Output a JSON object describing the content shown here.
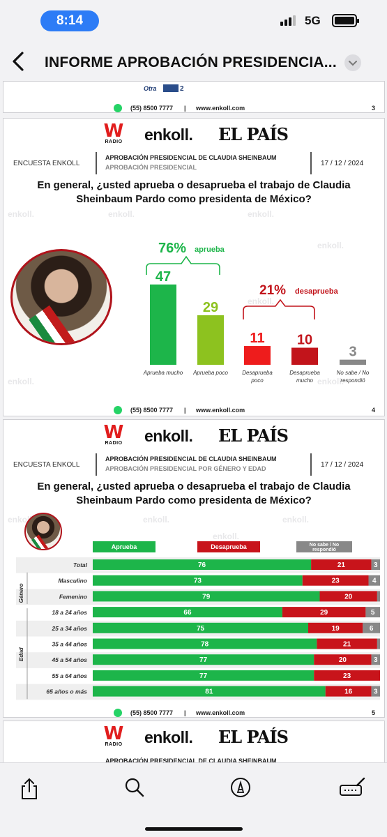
{
  "status_bar": {
    "time": "8:14",
    "network": "5G"
  },
  "nav": {
    "title": "INFORME APROBACIÓN PRESIDENCIA...",
    "back_icon": "chevron-left-icon",
    "menu_icon": "chevron-down-icon"
  },
  "footer": {
    "phone": "(55) 8500 7777",
    "separator": "|",
    "website": "www.enkoll.com"
  },
  "header": {
    "w_logo": "W",
    "w_sub": "RADIO",
    "enkoll": "enkoll.",
    "elpais": "EL PAÍS",
    "encuesta": "ENCUESTA ENKOLL",
    "date": "17 / 12 / 2024"
  },
  "watermark": "enkoll.",
  "page3": {
    "otra_label": "Otra",
    "otra_value": "2",
    "page_number": "3"
  },
  "page4": {
    "title1": "APROBACIÓN PRESIDENCIAL DE CLAUDIA SHEINBAUM",
    "title2": "APROBACIÓN PRESIDENCIAL",
    "question": "En general, ¿usted aprueba o desaprueba el trabajo de Claudia Sheinbaum Pardo como presidenta de México?",
    "approve_total": "76%",
    "approve_word": "aprueba",
    "disapprove_total": "21%",
    "disapprove_word": "desaprueba",
    "page_number": "4"
  },
  "page5": {
    "title1": "APROBACIÓN PRESIDENCIAL DE CLAUDIA SHEINBAUM",
    "title2": "APROBACIÓN PRESIDENCIAL POR GÉNERO Y EDAD",
    "question": "En general, ¿usted aprueba o desaprueba el trabajo de Claudia Sheinbaum Pardo como presidenta de México?",
    "legend": [
      "Aprueba",
      "Desaprueba",
      "No sabe / No respondió"
    ],
    "group_genero": "Género",
    "group_edad": "Edad",
    "page_number": "5"
  },
  "page6": {
    "title1": "APROBACIÓN PRESIDENCIAL DE CLAUDIA SHEINBAUM"
  },
  "colors": {
    "green": "#1db54a",
    "lime": "#8dc21f",
    "red_bright": "#ee1c1c",
    "red_dark": "#c2141b",
    "gray": "#888888",
    "bar_red": "#c8141b"
  },
  "chart_data": [
    {
      "type": "bar",
      "categories": [
        "Aprueba mucho",
        "Aprueba poco",
        "Desaprueba poco",
        "Desaprueba mucho",
        "No sabe / No respondió"
      ],
      "values": [
        47,
        29,
        11,
        10,
        3
      ],
      "title": "",
      "xlabel": "",
      "ylabel": ""
    },
    {
      "type": "bar",
      "orientation": "horizontal-stacked",
      "categories": [
        "Total",
        "Masculino",
        "Femenino",
        "18 a 24 años",
        "25 a 34 años",
        "35 a 44 años",
        "45 a 54 años",
        "55 a 64 años",
        "65 años o más"
      ],
      "series": [
        {
          "name": "Aprueba",
          "values": [
            76,
            73,
            79,
            66,
            75,
            78,
            77,
            77,
            81
          ]
        },
        {
          "name": "Desaprueba",
          "values": [
            21,
            23,
            20,
            29,
            19,
            21,
            20,
            23,
            16
          ]
        },
        {
          "name": "No sabe / No respondió",
          "values": [
            3,
            4,
            1,
            5,
            6,
            1,
            3,
            0,
            3
          ]
        }
      ],
      "labels_shown": [
        [
          "76",
          "21",
          "3"
        ],
        [
          "73",
          "23",
          "4"
        ],
        [
          "79",
          "20",
          ""
        ],
        [
          "66",
          "29",
          "5"
        ],
        [
          "75",
          "19",
          "6"
        ],
        [
          "78",
          "21",
          ""
        ],
        [
          "77",
          "20",
          "3"
        ],
        [
          "77",
          "23",
          ""
        ],
        [
          "81",
          "16",
          "3"
        ]
      ]
    }
  ]
}
